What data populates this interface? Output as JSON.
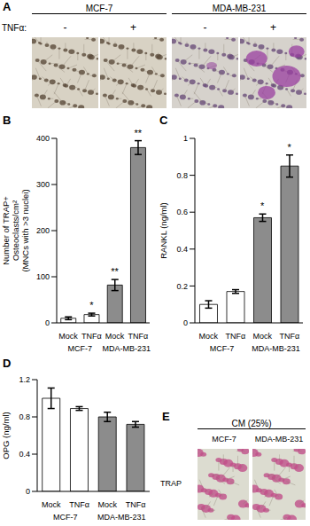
{
  "chart_data": [
    {
      "panel": "B",
      "type": "bar",
      "categories": [
        "Mock",
        "TNFα",
        "Mock",
        "TNFα"
      ],
      "group_labels": [
        "MCF-7",
        "MDA-MB-231"
      ],
      "values": [
        10,
        18,
        82,
        380
      ],
      "errors": [
        3,
        3,
        12,
        15
      ],
      "significance": [
        null,
        "*",
        "**",
        "**"
      ],
      "colors": [
        "#ffffff",
        "#ffffff",
        "#8c8c8c",
        "#8c8c8c"
      ],
      "ylabel": "Number of TRAP+\nOsteoclasts/cm²\n(MNCs with >3 nuclei)",
      "ylim": [
        0,
        400
      ],
      "yticks": [
        0,
        100,
        200,
        300,
        400
      ]
    },
    {
      "panel": "C",
      "type": "bar",
      "categories": [
        "Mock",
        "TNFα",
        "Mock",
        "TNFα"
      ],
      "group_labels": [
        "MCF-7",
        "MDA-MB-231"
      ],
      "values": [
        0.1,
        0.17,
        0.57,
        0.85
      ],
      "errors": [
        0.02,
        0.01,
        0.02,
        0.06
      ],
      "significance": [
        null,
        null,
        "*",
        "*"
      ],
      "colors": [
        "#ffffff",
        "#ffffff",
        "#8c8c8c",
        "#8c8c8c"
      ],
      "ylabel": "RANKL (ng/ml)",
      "ylim": [
        0,
        1
      ],
      "yticks": [
        0,
        0.2,
        0.4,
        0.6,
        0.8,
        1
      ]
    },
    {
      "panel": "D",
      "type": "bar",
      "categories": [
        "Mock",
        "TNFα",
        "Mock",
        "TNFα"
      ],
      "group_labels": [
        "MCF-7",
        "MDA-MB-231"
      ],
      "values": [
        1.0,
        0.89,
        0.8,
        0.72
      ],
      "errors": [
        0.11,
        0.02,
        0.05,
        0.03
      ],
      "significance": [
        null,
        null,
        null,
        null
      ],
      "colors": [
        "#ffffff",
        "#ffffff",
        "#8c8c8c",
        "#8c8c8c"
      ],
      "ylabel": "OPG (ng/ml)",
      "ylim": [
        0,
        1.2
      ],
      "yticks": [
        0,
        0.4,
        0.8,
        1.2
      ]
    }
  ],
  "images": [
    {
      "panel": "A",
      "column_groups": [
        "MCF-7",
        "MDA-MB-231"
      ],
      "row_label": "TNFα:",
      "column_labels": [
        "-",
        "+",
        "-",
        "+"
      ]
    },
    {
      "panel": "E",
      "title": "CM (25%)",
      "column_labels": [
        "MCF-7",
        "MDA-MB-231"
      ],
      "row_label": "TRAP"
    }
  ]
}
